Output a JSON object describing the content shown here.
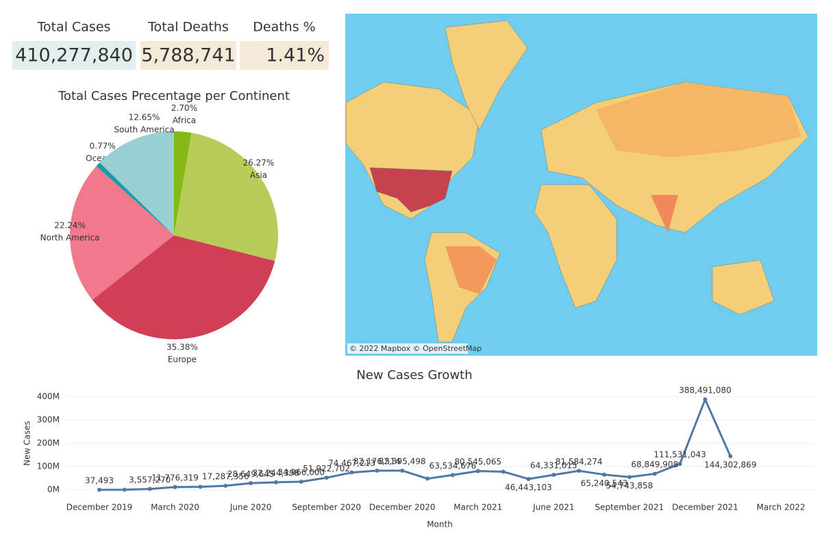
{
  "kpis": [
    {
      "label": "Total Cases",
      "value": "410,277,840"
    },
    {
      "label": "Total Deaths",
      "value": "5,788,741"
    },
    {
      "label": "Deaths %",
      "value": "1.41%"
    }
  ],
  "map": {
    "attribution": "© 2022 Mapbox © OpenStreetMap"
  },
  "chart_data": [
    {
      "type": "pie",
      "title": "Total Cases Precentage per Continent",
      "categories": [
        "Africa",
        "Asia",
        "Europe",
        "North America",
        "Oceania",
        "South America"
      ],
      "values": [
        2.7,
        26.27,
        35.38,
        22.24,
        0.77,
        12.65
      ],
      "value_labels": [
        "2.70%",
        "26.27%",
        "35.38%",
        "22.24%",
        "0.77%",
        "12.65%"
      ],
      "colors": [
        "#86b817",
        "#b8cc5a",
        "#d13f55",
        "#f07a8c",
        "#1b9aaa",
        "#98cfd1"
      ]
    },
    {
      "type": "line",
      "title": "New Cases Growth",
      "x_label": "Month",
      "y_label": "New Cases",
      "categories": [
        "December 2019",
        null,
        null,
        "March 2020",
        null,
        null,
        "June 2020",
        null,
        null,
        "September 2020",
        null,
        null,
        "December 2020",
        null,
        null,
        "March 2021",
        null,
        null,
        "June 2021",
        null,
        null,
        "September 2021",
        null,
        null,
        "December 2021",
        null,
        null
      ],
      "xlim": [
        0,
        27
      ],
      "xticks": [
        {
          "value": 0,
          "label": "December 2019"
        },
        {
          "value": 3,
          "label": "March 2020"
        },
        {
          "value": 6,
          "label": "June 2020"
        },
        {
          "value": 9,
          "label": "September 2020"
        },
        {
          "value": 12,
          "label": "December 2020"
        },
        {
          "value": 15,
          "label": "March 2021"
        },
        {
          "value": 18,
          "label": "June 2021"
        },
        {
          "value": 21,
          "label": "September 2021"
        },
        {
          "value": 24,
          "label": "December 2021"
        },
        {
          "value": 27,
          "label": "March 2022"
        }
      ],
      "series": [
        {
          "name": "New Cases",
          "color": "#4e79a7",
          "values": [
            37493,
            300000,
            3557270,
            11776319,
            13000000,
            17287356,
            28649645,
            32244398,
            34966000,
            51922702,
            74467213,
            82176514,
            82395498,
            48000000,
            63534676,
            80545065,
            78000000,
            46443103,
            64331015,
            81584274,
            65240543,
            54743858,
            68849908,
            111531043,
            388491080,
            144302869,
            null
          ],
          "value_labels": [
            "37,493",
            null,
            "3,557,270",
            "11,776,319",
            null,
            "17,287,356",
            "28,649,645",
            "32,244,398",
            "34,966,000",
            "51,922,702",
            "74,467,213",
            "82,176,514",
            "82,395,498",
            null,
            "63,534,676",
            "80,545,065",
            null,
            "46,443,103",
            "64,331,015",
            "81,584,274",
            "65,240,543",
            "54,743,858",
            "68,849,908",
            "111,531,043",
            "388,491,080",
            "144,302,869",
            null
          ]
        }
      ],
      "ylim": [
        0,
        400000000
      ],
      "yticks": [
        {
          "value": 0,
          "label": "0M"
        },
        {
          "value": 100000000,
          "label": "100M"
        },
        {
          "value": 200000000,
          "label": "200M"
        },
        {
          "value": 300000000,
          "label": "300M"
        },
        {
          "value": 400000000,
          "label": "400M"
        }
      ],
      "grid": true
    }
  ]
}
